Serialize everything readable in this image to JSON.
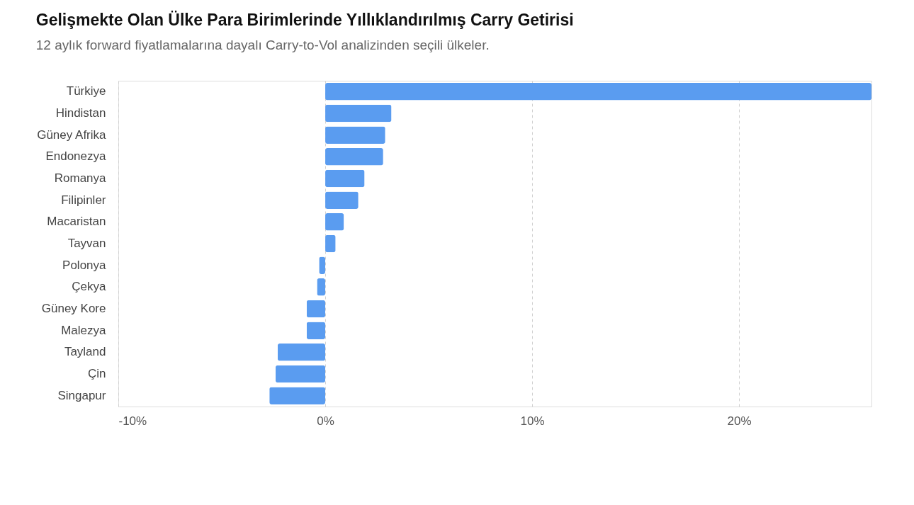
{
  "chart_data": {
    "type": "bar",
    "orientation": "horizontal",
    "title": "Gelişmekte Olan Ülke Para Birimlerinde Yıllıklandırılmış Carry Getirisi",
    "subtitle": "12 aylık forward fiyatlamalarına dayalı Carry-to-Vol analizinden seçili ülkeler.",
    "categories": [
      "Türkiye",
      "Hindistan",
      "Güney Afrika",
      "Endonezya",
      "Romanya",
      "Filipinler",
      "Macaristan",
      "Tayvan",
      "Polonya",
      "Çekya",
      "Güney Kore",
      "Malezya",
      "Tayland",
      "Çin",
      "Singapur"
    ],
    "values": [
      26.4,
      3.2,
      2.9,
      2.8,
      1.9,
      1.6,
      0.9,
      0.5,
      -0.3,
      -0.4,
      -0.9,
      -0.9,
      -2.3,
      -2.4,
      -2.7
    ],
    "color": "#5a9cf0",
    "xlim": [
      -10,
      26.4
    ],
    "xticks": [
      {
        "value": -10,
        "label": "-10%"
      },
      {
        "value": 0,
        "label": "0%"
      },
      {
        "value": 10,
        "label": "10%"
      },
      {
        "value": 20,
        "label": "20%"
      }
    ],
    "grid": "x",
    "line_style": "dashed"
  }
}
